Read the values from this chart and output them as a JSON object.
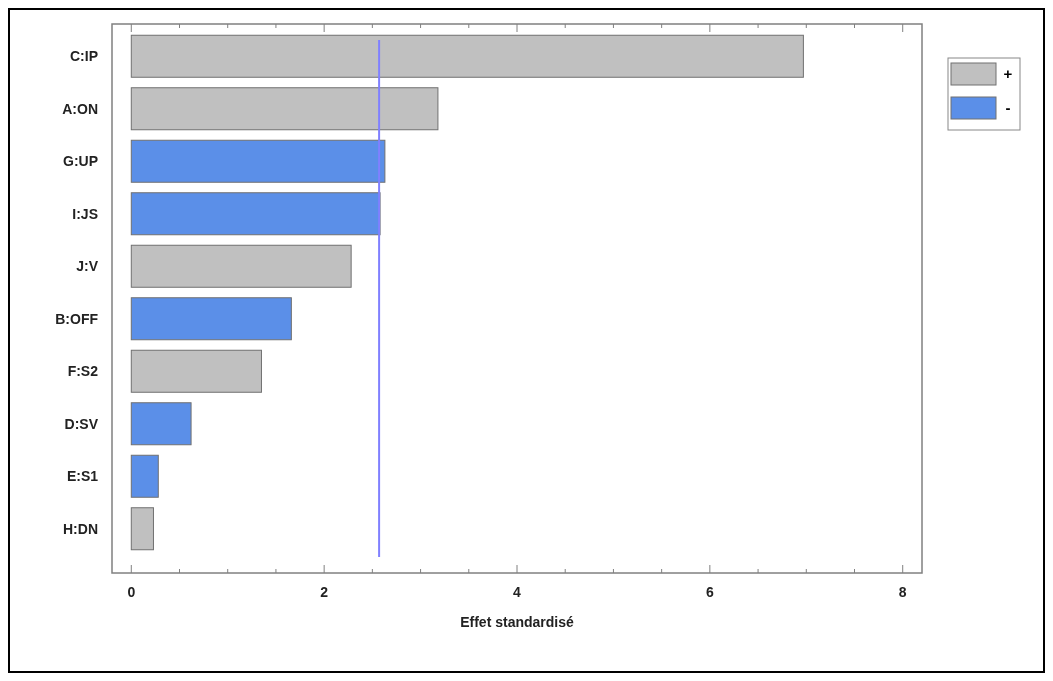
{
  "chart_data": {
    "type": "bar",
    "orientation": "horizontal",
    "stacked": true,
    "xlabel": "Effet standardisé",
    "categories": [
      "C:IP",
      "A:ON",
      "G:UP",
      "I:JS",
      "J:V",
      "B:OFF",
      "F:S2",
      "D:SV",
      "E:S1",
      "H:DN"
    ],
    "series": [
      {
        "name": "+",
        "color": "#c0c0c0",
        "values": [
          6.97,
          3.18,
          null,
          null,
          2.28,
          null,
          1.35,
          null,
          null,
          0.23
        ]
      },
      {
        "name": "-",
        "color": "#5b8fe8",
        "values": [
          null,
          null,
          2.63,
          2.58,
          null,
          1.66,
          null,
          0.62,
          0.28,
          null
        ]
      }
    ],
    "xlim": [
      -0.2,
      8.2
    ],
    "xticks": [
      0,
      {
        "value": 0.5,
        "label": null
      },
      {
        "value": 1,
        "label": null
      },
      {
        "value": 1.5,
        "label": null
      },
      2,
      {
        "value": 2.5,
        "label": null
      },
      {
        "value": 3,
        "label": null
      },
      {
        "value": 3.5,
        "label": null
      },
      4,
      {
        "value": 4.5,
        "label": null
      },
      {
        "value": 5,
        "label": null
      },
      {
        "value": 5.5,
        "label": null
      },
      6,
      {
        "value": 6.5,
        "label": null
      },
      {
        "value": 7,
        "label": null
      },
      {
        "value": 7.5,
        "label": null
      },
      8
    ],
    "ref_lines": [
      {
        "axis": "x",
        "value": 2.57,
        "color": "#8080ff"
      }
    ],
    "legend": "top right",
    "grid": false
  }
}
